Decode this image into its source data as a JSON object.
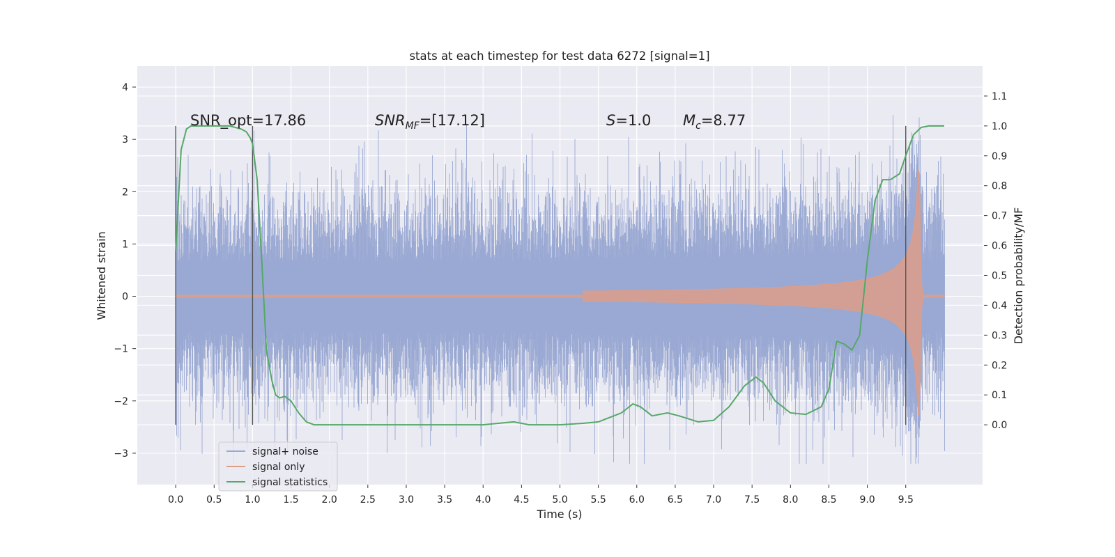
{
  "chart_data": {
    "type": "line",
    "title": "stats at each timestep for test data 6272 [signal=1]",
    "xlabel": "Time (s)",
    "ylabel_left": "Whitened strain",
    "ylabel_right": "Detection probability/MF",
    "xlim": [
      -0.5,
      10.5
    ],
    "ylim_left": [
      -3.6,
      4.4
    ],
    "ylim_right": [
      -0.2,
      1.2
    ],
    "x_ticks": [
      "0.0",
      "0.5",
      "1.0",
      "1.5",
      "2.0",
      "2.5",
      "3.0",
      "3.5",
      "4.0",
      "4.5",
      "5.0",
      "5.5",
      "6.0",
      "6.5",
      "7.0",
      "7.5",
      "8.0",
      "8.5",
      "9.0",
      "9.5"
    ],
    "y_ticks_left": [
      "−3",
      "−2",
      "−1",
      "0",
      "1",
      "2",
      "3",
      "4"
    ],
    "y_ticks_right": [
      "0.0",
      "0.1",
      "0.2",
      "0.3",
      "0.4",
      "0.5",
      "0.6",
      "0.7",
      "0.8",
      "0.9",
      "1.0",
      "1.1"
    ],
    "grid": true,
    "legend_position": "lower-left",
    "annotations": {
      "snr_opt": "SNR_opt=17.86",
      "snr_mf_base": "SNR",
      "snr_mf_sub": "MF",
      "snr_mf_rest": "=[17.12]",
      "s_base": "S",
      "s_rest": "=1.0",
      "mc_base": "M",
      "mc_sub": "c",
      "mc_rest": "=8.77"
    },
    "vertical_markers_x": [
      0.0,
      1.0,
      9.5
    ],
    "series": [
      {
        "name": "signal+ noise",
        "color": "#9aa9d3",
        "axis": "left",
        "description_values": "noise",
        "duration": [
          0.0,
          10.0
        ]
      },
      {
        "name": "signal only",
        "color": "#dd9e88",
        "axis": "left",
        "chirp_start": 5.3,
        "merger_time": 9.68,
        "peak_amplitude": 2.4
      },
      {
        "name": "signal statistics",
        "color": "#55a868",
        "axis": "right",
        "x": [
          0.0,
          0.07,
          0.14,
          0.2,
          0.3,
          0.5,
          0.7,
          0.85,
          0.92,
          0.97,
          1.0,
          1.06,
          1.12,
          1.18,
          1.25,
          1.3,
          1.35,
          1.42,
          1.5,
          1.6,
          1.7,
          1.8,
          2.0,
          2.5,
          3.0,
          3.5,
          4.0,
          4.2,
          4.4,
          4.6,
          5.0,
          5.3,
          5.5,
          5.8,
          5.95,
          6.05,
          6.2,
          6.4,
          6.55,
          6.8,
          7.0,
          7.2,
          7.4,
          7.55,
          7.65,
          7.8,
          8.0,
          8.2,
          8.4,
          8.5,
          8.6,
          8.7,
          8.8,
          8.9,
          9.0,
          9.1,
          9.2,
          9.3,
          9.42,
          9.5,
          9.6,
          9.7,
          9.8,
          10.0
        ],
        "values": [
          0.58,
          0.92,
          0.99,
          1.0,
          1.0,
          1.0,
          1.0,
          0.99,
          0.98,
          0.96,
          0.94,
          0.82,
          0.55,
          0.25,
          0.15,
          0.1,
          0.09,
          0.095,
          0.08,
          0.04,
          0.01,
          0.0,
          0.0,
          0.0,
          0.0,
          0.0,
          0.0,
          0.005,
          0.01,
          0.0,
          0.0,
          0.005,
          0.01,
          0.04,
          0.07,
          0.06,
          0.03,
          0.04,
          0.03,
          0.01,
          0.015,
          0.06,
          0.13,
          0.16,
          0.14,
          0.08,
          0.04,
          0.035,
          0.06,
          0.12,
          0.28,
          0.27,
          0.25,
          0.3,
          0.55,
          0.75,
          0.82,
          0.82,
          0.84,
          0.9,
          0.97,
          0.995,
          1.0,
          1.0
        ]
      }
    ]
  }
}
